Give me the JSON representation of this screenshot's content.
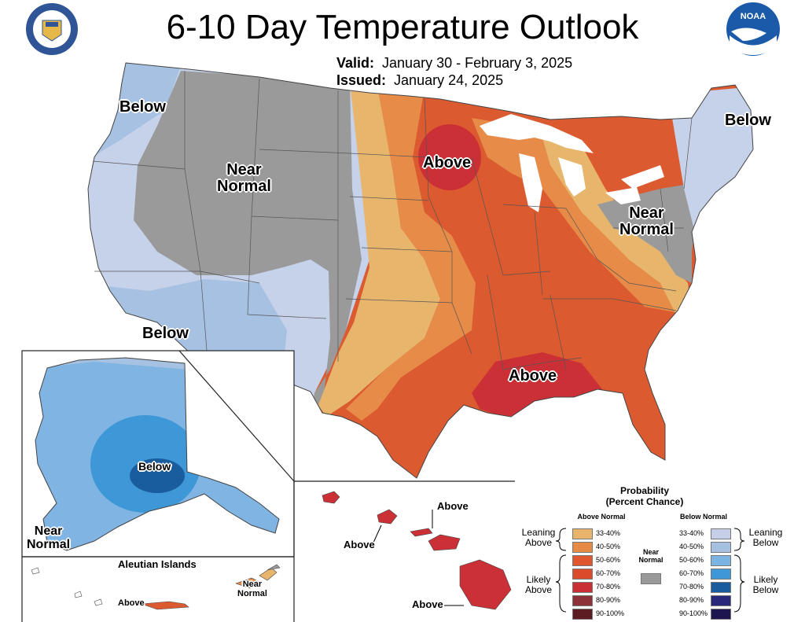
{
  "title": "6-10 Day Temperature Outlook",
  "valid_label": "Valid:",
  "valid_value": "January 30 - February 3, 2025",
  "issued_label": "Issued:",
  "issued_value": "January 24, 2025",
  "logos": {
    "left": "doc-seal-icon",
    "right": "noaa-logo-icon",
    "noaa_text": "NOAA"
  },
  "map_labels": {
    "below_nw": "Below",
    "near_normal_w": "Near\nNormal",
    "above_north": "Above",
    "below_ne": "Below",
    "near_normal_e": "Near\nNormal",
    "below_sw": "Below",
    "above_southeast": "Above"
  },
  "alaska": {
    "below": "Below",
    "near_normal": "Near\nNormal"
  },
  "aleutians": {
    "title": "Aleutian Islands",
    "above": "Above",
    "near_normal": "Near\nNormal"
  },
  "hawaii": {
    "above_1": "Above",
    "above_2": "Above",
    "above_3": "Above"
  },
  "legend": {
    "title": "Probability\n(Percent Chance)",
    "above_header": "Above Normal",
    "below_header": "Below Normal",
    "leaning_above": "Leaning\nAbove",
    "likely_above": "Likely\nAbove",
    "leaning_below": "Leaning\nBelow",
    "likely_below": "Likely\nBelow",
    "near_normal": "Near\nNormal",
    "ranges": [
      "33-40%",
      "40-50%",
      "50-60%",
      "60-70%",
      "70-80%",
      "80-90%",
      "90-100%"
    ],
    "above_colors": [
      "#e8b46c",
      "#e68b47",
      "#e0572f",
      "#dc4a2c",
      "#c93035",
      "#8e323a",
      "#5c1c22"
    ],
    "below_colors": [
      "#c5cfe8",
      "#a5c0e0",
      "#7bb3e2",
      "#3e97d6",
      "#1a5d9e",
      "#2a2878",
      "#1c1550"
    ],
    "near_normal_color": "#999999"
  }
}
